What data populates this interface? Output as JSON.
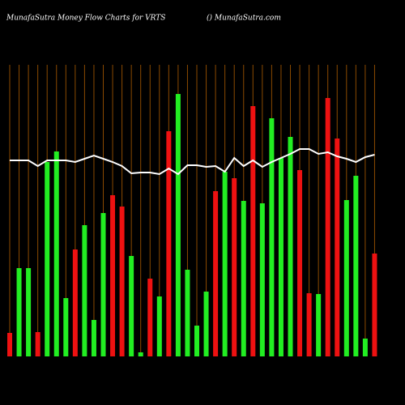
{
  "chart_data": {
    "type": "bar",
    "title": "MunafaSutra  Money Flow  Charts for VRTS",
    "subtitle": "() MunafaSutra.com",
    "ylim": [
      0,
      340
    ],
    "grid": true,
    "grid_color": "#8b4a00",
    "up_color": "#22ee22",
    "down_color": "#ee1111",
    "line_color": "#ffffff",
    "directions": [
      "down",
      "up",
      "up",
      "down",
      "up",
      "up",
      "up",
      "down",
      "up",
      "up",
      "up",
      "down",
      "down",
      "up",
      "up",
      "down",
      "up",
      "down",
      "up",
      "up",
      "up",
      "up",
      "down",
      "up",
      "down",
      "up",
      "down",
      "up",
      "up",
      "up",
      "up",
      "down",
      "down",
      "up",
      "down",
      "down",
      "up",
      "up",
      "up",
      "down"
    ],
    "values": [
      29,
      109,
      109,
      30,
      240,
      253,
      72,
      132,
      162,
      45,
      177,
      199,
      185,
      124,
      5,
      96,
      74,
      278,
      324,
      107,
      38,
      80,
      204,
      228,
      220,
      192,
      309,
      189,
      294,
      245,
      271,
      230,
      78,
      77,
      319,
      269,
      193,
      223,
      22,
      127
    ],
    "line": [
      242,
      242,
      242,
      235,
      242,
      242,
      242,
      240,
      244,
      248,
      244,
      240,
      235,
      226,
      227,
      227,
      225,
      232,
      225,
      236,
      236,
      234,
      235,
      228,
      245,
      235,
      242,
      234,
      240,
      245,
      250,
      256,
      256,
      250,
      252,
      247,
      244,
      240,
      246,
      249
    ]
  }
}
